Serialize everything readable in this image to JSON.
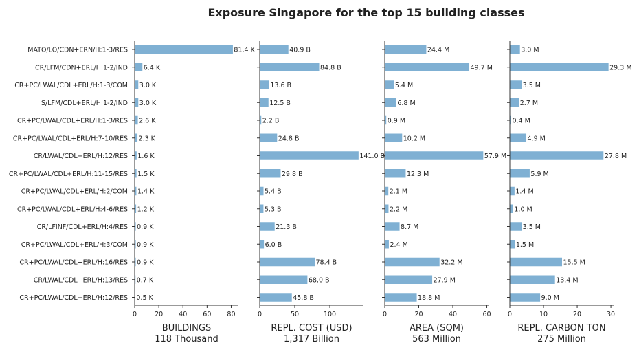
{
  "chart_data": {
    "type": "bar",
    "orientation": "horizontal",
    "title": "Exposure Singapore for the top 15 building classes",
    "bar_color": "#7fb0d3",
    "grid": false,
    "categories": [
      "MATO/LO/CDN+ERN/H:1-3/RES",
      "CR/LFM/CDN+ERL/H:1-2/IND",
      "CR+PC/LWAL/CDL+ERL/H:1-3/COM",
      "S/LFM/CDL+ERL/H:1-2/IND",
      "CR+PC/LWAL/CDL+ERL/H:1-3/RES",
      "CR+PC/LWAL/CDL+ERL/H:7-10/RES",
      "CR/LWAL/CDL+ERL/H:12/RES",
      "CR+PC/LWAL/CDL+ERL/H:11-15/RES",
      "CR+PC/LWAL/CDL+ERL/H:2/COM",
      "CR+PC/LWAL/CDL+ERL/H:4-6/RES",
      "CR/LFINF/CDL+ERL/H:4/RES",
      "CR+PC/LWAL/CDL+ERL/H:3/COM",
      "CR+PC/LWAL/CDL+ERL/H:16/RES",
      "CR/LWAL/CDL+ERL/H:13/RES",
      "CR+PC/LWAL/CDL+ERL/H:12/RES"
    ],
    "panels": [
      {
        "name": "BUILDINGS",
        "total": "118 Thousand",
        "xlim": [
          0,
          86
        ],
        "ticks": [
          0,
          20,
          40,
          60,
          80
        ],
        "values": [
          81.4,
          6.4,
          3.0,
          3.0,
          2.6,
          2.3,
          1.6,
          1.5,
          1.4,
          1.2,
          0.9,
          0.9,
          0.9,
          0.7,
          0.5
        ],
        "labels": [
          "81.4 K",
          "6.4 K",
          "3.0 K",
          "3.0 K",
          "2.6 K",
          "2.3 K",
          "1.6 K",
          "1.5 K",
          "1.4 K",
          "1.2 K",
          "0.9 K",
          "0.9 K",
          "0.9 K",
          "0.7 K",
          "0.5 K"
        ]
      },
      {
        "name": "REPL. COST (USD)",
        "total": "1,317 Billion",
        "xlim": [
          0,
          148
        ],
        "ticks": [
          0,
          50,
          100
        ],
        "values": [
          40.9,
          84.8,
          13.6,
          12.5,
          2.2,
          24.8,
          141.0,
          29.8,
          5.4,
          5.3,
          21.3,
          6.0,
          78.4,
          68.0,
          45.8
        ],
        "labels": [
          "40.9 B",
          "84.8 B",
          "13.6 B",
          "12.5 B",
          "2.2 B",
          "24.8 B",
          "141.0 B",
          "29.8 B",
          "5.4 B",
          "5.3 B",
          "21.3 B",
          "6.0 B",
          "78.4 B",
          "68.0 B",
          "45.8 B"
        ]
      },
      {
        "name": "AREA (SQM)",
        "total": "563 Million",
        "xlim": [
          0,
          61
        ],
        "ticks": [
          0,
          20,
          40,
          60
        ],
        "values": [
          24.4,
          49.7,
          5.4,
          6.8,
          0.9,
          10.2,
          57.9,
          12.3,
          2.1,
          2.2,
          8.7,
          2.4,
          32.2,
          27.9,
          18.8
        ],
        "labels": [
          "24.4 M",
          "49.7 M",
          "5.4 M",
          "6.8 M",
          "0.9 M",
          "10.2 M",
          "57.9 M",
          "12.3 M",
          "2.1 M",
          "2.2 M",
          "8.7 M",
          "2.4 M",
          "32.2 M",
          "27.9 M",
          "18.8 M"
        ]
      },
      {
        "name": "REPL. CARBON TON",
        "total": "275 Million",
        "xlim": [
          0,
          30.8
        ],
        "ticks": [
          0,
          10,
          20,
          30
        ],
        "values": [
          3.0,
          29.3,
          3.5,
          2.7,
          0.4,
          4.9,
          27.8,
          5.9,
          1.4,
          1.0,
          3.5,
          1.5,
          15.5,
          13.4,
          9.0
        ],
        "labels": [
          "3.0 M",
          "29.3 M",
          "3.5 M",
          "2.7 M",
          "0.4 M",
          "4.9 M",
          "27.8 M",
          "5.9 M",
          "1.4 M",
          "1.0 M",
          "3.5 M",
          "1.5 M",
          "15.5 M",
          "13.4 M",
          "9.0 M"
        ]
      }
    ]
  }
}
